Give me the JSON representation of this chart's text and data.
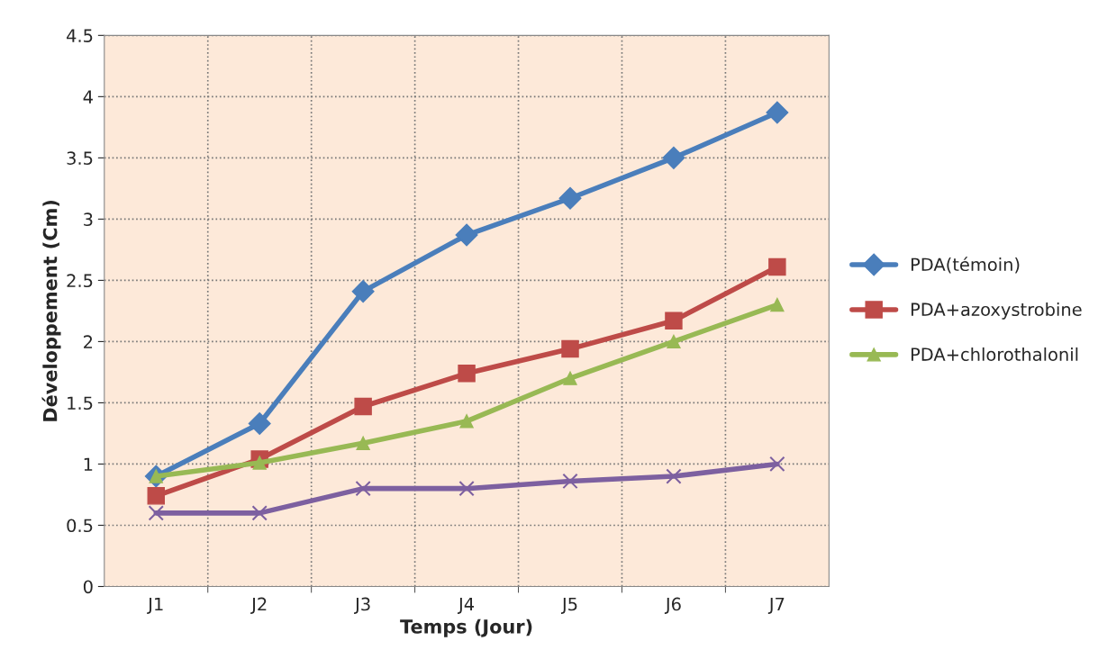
{
  "chart_data": {
    "type": "line",
    "xlabel": "Temps (Jour)",
    "ylabel": "Développement (Cm)",
    "categories": [
      "J1",
      "J2",
      "J3",
      "J4",
      "J5",
      "J6",
      "J7"
    ],
    "series": [
      {
        "name": "PDA(témoin)",
        "color": "#4a7ebb",
        "marker": "diamond",
        "values": [
          0.9,
          1.33,
          2.41,
          2.87,
          3.17,
          3.5,
          3.87
        ]
      },
      {
        "name": "PDA+azoxystrobine",
        "color": "#be4b48",
        "marker": "square",
        "values": [
          0.74,
          1.04,
          1.47,
          1.74,
          1.94,
          2.17,
          2.61
        ]
      },
      {
        "name": "PDA+chlorothalonil",
        "color": "#98b954",
        "marker": "triangle",
        "values": [
          0.9,
          1.01,
          1.17,
          1.35,
          1.7,
          2.0,
          2.3
        ]
      },
      {
        "color": "#7d60a0",
        "marker": "cross",
        "values": [
          0.6,
          0.6,
          0.8,
          0.8,
          0.86,
          0.9,
          1.0
        ]
      }
    ],
    "ylim": [
      0,
      4.5
    ],
    "yticks": [
      0,
      0.5,
      1,
      1.5,
      2,
      2.5,
      3,
      3.5,
      4,
      4.5
    ],
    "grid": true,
    "legend": "right",
    "line_style": "solid"
  }
}
